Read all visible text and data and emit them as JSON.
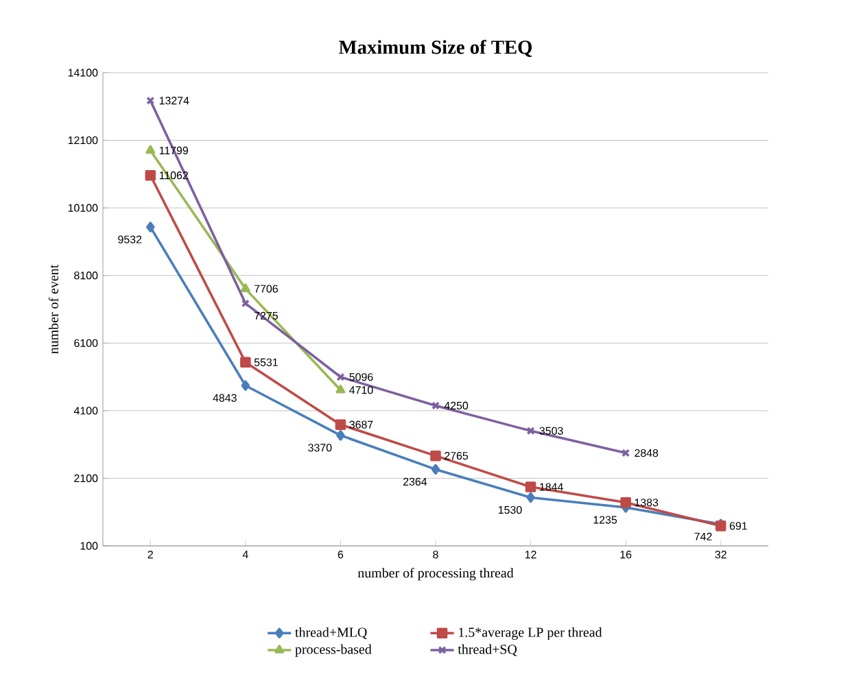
{
  "chart_data": {
    "type": "line",
    "title": "Maximum Size of TEQ",
    "xlabel": "number of processing thread",
    "ylabel": "number of event",
    "categories": [
      "2",
      "4",
      "6",
      "8",
      "12",
      "16",
      "32"
    ],
    "series": [
      {
        "name": "thread+MLQ",
        "color": "#4a7ebb",
        "marker": "diamond",
        "values": [
          9532,
          4843,
          3370,
          2364,
          1530,
          1235,
          742
        ]
      },
      {
        "name": "1.5*average LP per thread",
        "color": "#be4b48",
        "marker": "square",
        "values": [
          11062,
          5531,
          3687,
          2765,
          1844,
          1383,
          691
        ]
      },
      {
        "name": "process-based",
        "color": "#98b954",
        "marker": "triangle",
        "values": [
          11799,
          7706,
          4710,
          null,
          null,
          null,
          null
        ]
      },
      {
        "name": "thread+SQ",
        "color": "#7d60a0",
        "marker": "cross",
        "values": [
          13274,
          7275,
          5096,
          4250,
          3503,
          2848,
          null
        ]
      }
    ],
    "ylim": [
      100,
      14100
    ],
    "yticks": [
      100,
      2100,
      4100,
      6100,
      8100,
      10100,
      12100,
      14100
    ],
    "grid": "y",
    "legend": "bottom",
    "data_labels": true,
    "line_style": "solid"
  }
}
